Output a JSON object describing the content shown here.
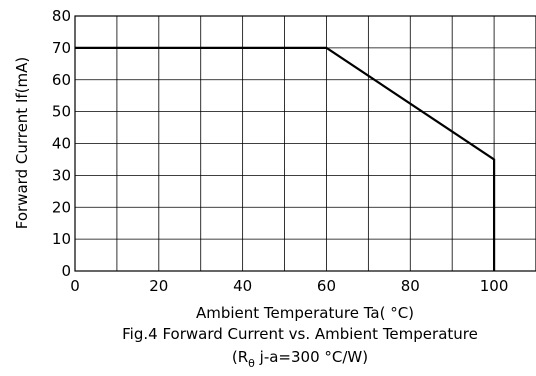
{
  "chart_data": {
    "type": "line",
    "xlabel": "Ambient Temperature Ta( °C)",
    "ylabel": "Forward Current If(mA)",
    "xlim": [
      0,
      110
    ],
    "ylim": [
      0,
      80
    ],
    "x_ticks": [
      0,
      20,
      40,
      60,
      80,
      100
    ],
    "y_ticks": [
      0,
      10,
      20,
      30,
      40,
      50,
      60,
      70,
      80
    ],
    "x_tick_labels": [
      "0",
      "20",
      "40",
      "60",
      "80",
      "100"
    ],
    "y_tick_labels": [
      "0",
      "10",
      "20",
      "30",
      "40",
      "50",
      "60",
      "70",
      "80"
    ],
    "grid": true,
    "x_grid_step": 10,
    "y_grid_step": 10,
    "series": [
      {
        "x": [
          0,
          60,
          100,
          100
        ],
        "y": [
          70,
          70,
          35,
          0
        ]
      }
    ],
    "caption_line1": "Fig.4 Forward Current vs. Ambient Temperature",
    "caption_line2_main": "R",
    "caption_line2_sub": "θ",
    "caption_line2_rest": " j-a=300 °C/W"
  }
}
